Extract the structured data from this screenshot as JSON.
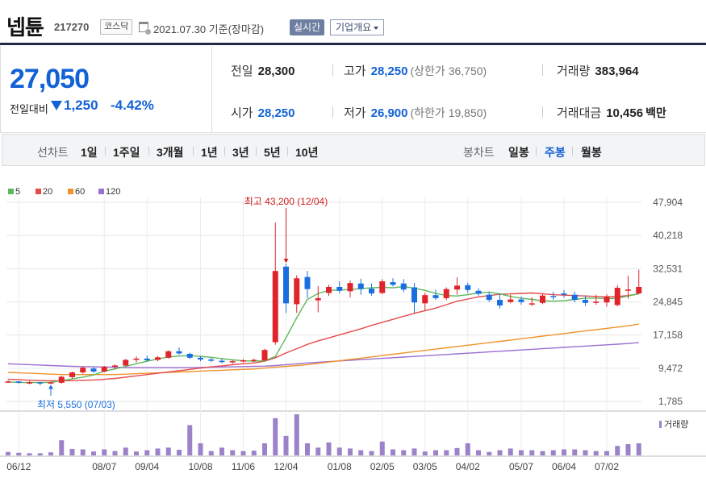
{
  "header": {
    "stock_name": "넵튠",
    "stock_code": "217270",
    "market": "코스닥",
    "date_text": "2021.07.30 기준(장마감)",
    "realtime_label": "실시간",
    "overview_label": "기업개요"
  },
  "price": {
    "current": "27,050",
    "prev_label": "전일대비",
    "change": "1,250",
    "change_pct": "-4.42%"
  },
  "quotes": {
    "prev_close": {
      "label": "전일",
      "value": "28,300"
    },
    "high": {
      "label": "고가",
      "value": "28,250",
      "sub": "(상한가 36,750)"
    },
    "volume": {
      "label": "거래량",
      "value": "383,964"
    },
    "open": {
      "label": "시가",
      "value": "28,250"
    },
    "low": {
      "label": "저가",
      "value": "26,900",
      "sub": "(하한가 19,850)"
    },
    "amount": {
      "label": "거래대금",
      "value": "10,456",
      "unit": "백만"
    }
  },
  "period_tabs": {
    "label": "선차트",
    "items": [
      "1일",
      "1주일",
      "3개월",
      "1년",
      "3년",
      "5년",
      "10년"
    ]
  },
  "candle_tabs": {
    "label": "봉차트",
    "items": [
      "일봉",
      "주봉",
      "월봉"
    ],
    "active": "주봉"
  },
  "colors": {
    "up": "#e0242b",
    "down": "#1a6fe0",
    "ma5": "#5cb85c",
    "ma20": "#e64b4b",
    "ma60": "#f0932b",
    "ma120": "#9b6fd1",
    "volume": "#9b82c9"
  },
  "chart_data": {
    "type": "candlestick",
    "legend": [
      {
        "name": "5",
        "color": "#5cb85c"
      },
      {
        "name": "20",
        "color": "#e64b4b"
      },
      {
        "name": "60",
        "color": "#f0932b"
      },
      {
        "name": "120",
        "color": "#9b6fd1"
      }
    ],
    "y_ticks": [
      "47,904",
      "40,218",
      "32,531",
      "24,845",
      "17,158",
      "9,472",
      "1,785"
    ],
    "ylim": [
      1785,
      47904
    ],
    "x_labels": [
      {
        "index": 1,
        "label": "06/12"
      },
      {
        "index": 9,
        "label": "08/07"
      },
      {
        "index": 13,
        "label": "09/04"
      },
      {
        "index": 18,
        "label": "10/08"
      },
      {
        "index": 22,
        "label": "11/06"
      },
      {
        "index": 26,
        "label": "12/04"
      },
      {
        "index": 31,
        "label": "01/08"
      },
      {
        "index": 35,
        "label": "02/05"
      },
      {
        "index": 39,
        "label": "03/05"
      },
      {
        "index": 43,
        "label": "04/02"
      },
      {
        "index": 48,
        "label": "05/07"
      },
      {
        "index": 52,
        "label": "06/04"
      },
      {
        "index": 56,
        "label": "07/02"
      }
    ],
    "annotation_high": "최고 43,200 (12/04)",
    "annotation_low": "최저 5,550 (07/03)",
    "high_index": 26,
    "low_index": 4,
    "volume_label": "거래량",
    "ohlc": [
      [
        6300,
        6700,
        6100,
        6400
      ],
      [
        6400,
        6500,
        5900,
        6100
      ],
      [
        6100,
        6500,
        5800,
        6200
      ],
      [
        6200,
        6300,
        5550,
        6000
      ],
      [
        6000,
        6300,
        5800,
        6200
      ],
      [
        6100,
        7700,
        5900,
        7500
      ],
      [
        7400,
        8700,
        7100,
        8500
      ],
      [
        8500,
        9800,
        8200,
        9600
      ],
      [
        9400,
        9700,
        8400,
        8700
      ],
      [
        8700,
        10000,
        8500,
        9800
      ],
      [
        9800,
        10400,
        9300,
        10100
      ],
      [
        10100,
        11600,
        9900,
        11400
      ],
      [
        11400,
        12200,
        10800,
        11700
      ],
      [
        11700,
        12400,
        11100,
        11300
      ],
      [
        11400,
        12300,
        11100,
        12000
      ],
      [
        11900,
        13600,
        11700,
        13400
      ],
      [
        13400,
        14300,
        12600,
        12900
      ],
      [
        12800,
        13100,
        11600,
        11900
      ],
      [
        11900,
        12300,
        11100,
        11500
      ],
      [
        11500,
        11900,
        10900,
        11200
      ],
      [
        11200,
        11700,
        10600,
        10900
      ],
      [
        10900,
        11400,
        10500,
        11100
      ],
      [
        11100,
        11600,
        10800,
        11300
      ],
      [
        11200,
        11700,
        10900,
        11400
      ],
      [
        11300,
        14000,
        11100,
        13700
      ],
      [
        15500,
        43200,
        14900,
        32000
      ],
      [
        33000,
        33700,
        22300,
        24500
      ],
      [
        24300,
        31000,
        22300,
        30300
      ],
      [
        30600,
        32000,
        25700,
        27800
      ],
      [
        25200,
        28500,
        22400,
        25700
      ],
      [
        26900,
        28800,
        26200,
        28300
      ],
      [
        28300,
        29600,
        26800,
        27400
      ],
      [
        27300,
        29800,
        25900,
        29200
      ],
      [
        29100,
        30200,
        26500,
        27800
      ],
      [
        27900,
        29100,
        26300,
        26800
      ],
      [
        26900,
        30100,
        26600,
        29600
      ],
      [
        29400,
        30300,
        28400,
        28800
      ],
      [
        29100,
        30100,
        27100,
        27700
      ],
      [
        28200,
        29200,
        22300,
        24700
      ],
      [
        24500,
        27000,
        22800,
        26400
      ],
      [
        26400,
        27700,
        25300,
        25700
      ],
      [
        25700,
        28200,
        25200,
        27800
      ],
      [
        27700,
        30500,
        26500,
        28600
      ],
      [
        28700,
        29300,
        26900,
        27600
      ],
      [
        27400,
        28000,
        26300,
        26700
      ],
      [
        26500,
        27200,
        24800,
        25300
      ],
      [
        25300,
        26800,
        23300,
        24000
      ],
      [
        24800,
        26500,
        24500,
        25400
      ],
      [
        25400,
        26100,
        24200,
        24800
      ],
      [
        24500,
        25900,
        23900,
        24500
      ],
      [
        24600,
        26800,
        24300,
        26300
      ],
      [
        26200,
        27200,
        25300,
        26100
      ],
      [
        26800,
        27600,
        25800,
        26500
      ],
      [
        26500,
        27200,
        24700,
        25300
      ],
      [
        25300,
        26300,
        23900,
        24600
      ],
      [
        24600,
        26500,
        24200,
        24900
      ],
      [
        24700,
        26600,
        23700,
        26100
      ],
      [
        24100,
        28700,
        23800,
        28100
      ],
      [
        27700,
        30900,
        25600,
        27700
      ],
      [
        26800,
        32300,
        26600,
        28300
      ]
    ],
    "ma5": [
      6300,
      6200,
      6150,
      6150,
      6200,
      6600,
      7000,
      7400,
      7900,
      8800,
      9300,
      9900,
      10500,
      11100,
      11600,
      12100,
      12300,
      12400,
      12200,
      12000,
      11700,
      11400,
      11200,
      11100,
      11200,
      12200,
      16500,
      21200,
      25400,
      26800,
      27500,
      27600,
      27700,
      27900,
      28100,
      28200,
      28100,
      28400,
      28000,
      27500,
      26800,
      26300,
      26200,
      26500,
      26900,
      27100,
      26700,
      26100,
      25700,
      25400,
      25100,
      25000,
      25100,
      25400,
      25700,
      25700,
      25600,
      25700,
      26200,
      26700
    ],
    "ma20": [
      6900,
      6800,
      6700,
      6600,
      6550,
      6550,
      6600,
      6650,
      6750,
      6900,
      7100,
      7400,
      7700,
      8000,
      8300,
      8600,
      8900,
      9200,
      9500,
      9800,
      10000,
      10300,
      10500,
      10700,
      11100,
      11900,
      13000,
      14000,
      15000,
      15800,
      16500,
      17200,
      17900,
      18600,
      19400,
      20100,
      20800,
      21500,
      22200,
      22800,
      23400,
      24200,
      25000,
      25500,
      26000,
      26300,
      26600,
      26700,
      26800,
      26900,
      26700,
      26500,
      26400,
      26300,
      26200,
      26100,
      26000,
      26100,
      26300,
      26700
    ],
    "ma60": [
      8500,
      8400,
      8300,
      8200,
      8100,
      8000,
      8000,
      8000,
      8000,
      8000,
      8000,
      8100,
      8200,
      8300,
      8400,
      8500,
      8600,
      8700,
      8800,
      8900,
      9000,
      9100,
      9200,
      9300,
      9500,
      9700,
      9900,
      10100,
      10300,
      10600,
      10900,
      11200,
      11500,
      11800,
      12100,
      12400,
      12700,
      13000,
      13300,
      13600,
      13900,
      14200,
      14500,
      14800,
      15100,
      15400,
      15700,
      16000,
      16300,
      16600,
      16900,
      17200,
      17500,
      17800,
      18100,
      18400,
      18700,
      19000,
      19300,
      19700
    ],
    "ma120": [
      10500,
      10400,
      10300,
      10200,
      10100,
      10000,
      9900,
      9850,
      9800,
      9750,
      9700,
      9650,
      9600,
      9600,
      9600,
      9600,
      9600,
      9600,
      9650,
      9700,
      9750,
      9800,
      9850,
      9900,
      9950,
      10100,
      10300,
      10500,
      10700,
      10850,
      11000,
      11150,
      11300,
      11450,
      11600,
      11750,
      11900,
      12050,
      12200,
      12350,
      12500,
      12650,
      12800,
      12950,
      13100,
      13250,
      13400,
      13550,
      13700,
      13850,
      14000,
      14150,
      14300,
      14450,
      14600,
      14750,
      14900,
      15050,
      15200,
      15400
    ],
    "volume": [
      8,
      6,
      5,
      5,
      7,
      35,
      15,
      14,
      9,
      14,
      10,
      18,
      9,
      12,
      16,
      18,
      13,
      70,
      28,
      10,
      18,
      12,
      10,
      11,
      28,
      86,
      45,
      95,
      28,
      18,
      30,
      18,
      16,
      12,
      10,
      32,
      14,
      12,
      16,
      9,
      12,
      12,
      17,
      28,
      12,
      8,
      12,
      16,
      12,
      12,
      10,
      12,
      14,
      14,
      12,
      10,
      10,
      22,
      26,
      28
    ]
  }
}
